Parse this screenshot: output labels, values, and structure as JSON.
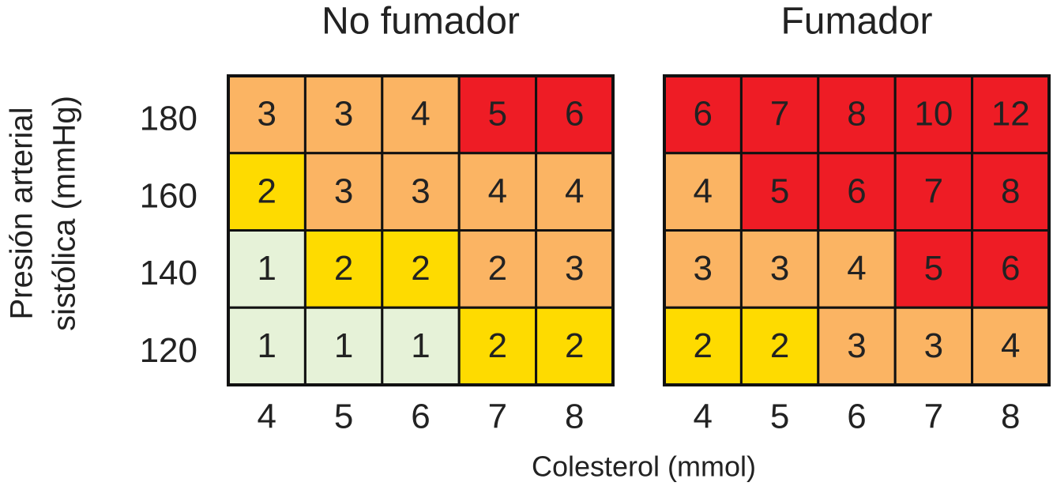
{
  "axis_labels": {
    "y": [
      "Presión arterial",
      "sistólica (mmHg)"
    ],
    "x": "Colesterol (mmol)"
  },
  "chart_data": [
    {
      "type": "heatmap",
      "title": "No fumador",
      "x": [
        4,
        5,
        6,
        7,
        8
      ],
      "y": [
        180,
        160,
        140,
        120
      ],
      "values": [
        [
          3,
          3,
          4,
          5,
          6
        ],
        [
          2,
          3,
          3,
          4,
          4
        ],
        [
          1,
          2,
          2,
          2,
          3
        ],
        [
          1,
          1,
          1,
          2,
          2
        ]
      ],
      "colors": [
        [
          "#fbb463",
          "#fbb463",
          "#fbb463",
          "#ee1c25",
          "#ee1c25"
        ],
        [
          "#fedb00",
          "#fbb463",
          "#fbb463",
          "#fbb463",
          "#fbb463"
        ],
        [
          "#e6f2d8",
          "#fedb00",
          "#fedb00",
          "#fbb463",
          "#fbb463"
        ],
        [
          "#e6f2d8",
          "#e6f2d8",
          "#e6f2d8",
          "#fedb00",
          "#fedb00"
        ]
      ]
    },
    {
      "type": "heatmap",
      "title": "Fumador",
      "x": [
        4,
        5,
        6,
        7,
        8
      ],
      "values": [
        [
          6,
          7,
          8,
          10,
          12
        ],
        [
          4,
          5,
          6,
          7,
          8
        ],
        [
          3,
          3,
          4,
          5,
          6
        ],
        [
          2,
          2,
          3,
          3,
          4
        ]
      ],
      "colors": [
        [
          "#ee1c25",
          "#ee1c25",
          "#ee1c25",
          "#ee1c25",
          "#ee1c25"
        ],
        [
          "#fbb463",
          "#ee1c25",
          "#ee1c25",
          "#ee1c25",
          "#ee1c25"
        ],
        [
          "#fbb463",
          "#fbb463",
          "#fbb463",
          "#ee1c25",
          "#ee1c25"
        ],
        [
          "#fedb00",
          "#fedb00",
          "#fbb463",
          "#fbb463",
          "#fbb463"
        ]
      ]
    }
  ]
}
